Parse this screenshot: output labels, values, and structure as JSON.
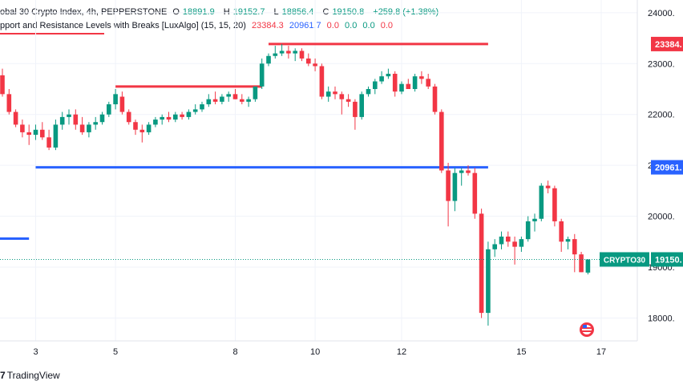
{
  "header": {
    "symbol_line": "obal 30 Crypto Index, 4h, PEPPERSTONE",
    "open_label": "O",
    "open": "18891.9",
    "high_label": "H",
    "high": "19152.7",
    "low_label": "L",
    "low": "18856.4",
    "close_label": "C",
    "close": "19150.8",
    "change": "+259.8 (+1.38%)",
    "indicator": "pport and Resistance Levels with Breaks [LuxAlgo] (15, 15, 20)",
    "ind_v1": "23384.3",
    "ind_v2": "20961.7",
    "ind_v3": "0.0",
    "ind_v4": "0.0",
    "ind_v5": "0.0",
    "ind_v6": "0.0"
  },
  "footer": {
    "logo_mark": "7",
    "brand": "TradingView"
  },
  "colors": {
    "up": "#089981",
    "down": "#f23645",
    "resistance": "#f23645",
    "support": "#2962ff",
    "axis_text": "#131722"
  },
  "chart_data": {
    "type": "candlestick",
    "title": "",
    "y_ticks": [
      "24000.",
      "23000.",
      "22000.",
      "21000.",
      "20000.",
      "19000.",
      "18000."
    ],
    "y_tick_values": [
      24000,
      23000,
      22000,
      21000,
      20000,
      19000,
      18000
    ],
    "x_tick_labels": [
      "3",
      "5",
      "8",
      "10",
      "12",
      "15",
      "17"
    ],
    "price_badges": [
      {
        "label": "23384.",
        "value": 23384.3,
        "color": "#f23645"
      },
      {
        "label": "20961.",
        "value": 20961.7,
        "color": "#2962ff"
      },
      {
        "label": "19150.",
        "value": 19150.8,
        "color": "#089981",
        "tag": "CRYPTO30"
      }
    ],
    "levels": [
      {
        "kind": "resistance",
        "value": 22550,
        "from": 17,
        "to": 39
      },
      {
        "kind": "resistance",
        "value": 23384.3,
        "from": 40,
        "to": 73
      },
      {
        "kind": "support",
        "value": 20961.7,
        "from": 5,
        "to": 73
      },
      {
        "kind": "support",
        "value": 19560,
        "from": -1,
        "to": 4
      }
    ],
    "candles": [
      [
        22770,
        22900,
        22350,
        22400
      ],
      [
        22400,
        22500,
        22000,
        22050
      ],
      [
        22050,
        22100,
        21750,
        21800
      ],
      [
        21800,
        21900,
        21550,
        21650
      ],
      [
        21650,
        21800,
        21400,
        21600
      ],
      [
        21600,
        21800,
        21500,
        21700
      ],
      [
        21700,
        21850,
        21500,
        21550
      ],
      [
        21550,
        21700,
        21300,
        21350
      ],
      [
        21350,
        21900,
        21300,
        21800
      ],
      [
        21800,
        22050,
        21700,
        21950
      ],
      [
        21950,
        22100,
        21800,
        22000
      ],
      [
        22000,
        22100,
        21700,
        21800
      ],
      [
        21800,
        21950,
        21600,
        21650
      ],
      [
        21650,
        21850,
        21550,
        21800
      ],
      [
        21800,
        21950,
        21700,
        21850
      ],
      [
        21850,
        22050,
        21800,
        22000
      ],
      [
        22000,
        22250,
        21950,
        22200
      ],
      [
        22200,
        22500,
        22100,
        22400
      ],
      [
        22350,
        22450,
        22000,
        22050
      ],
      [
        22050,
        22100,
        21800,
        21850
      ],
      [
        21850,
        21900,
        21600,
        21700
      ],
      [
        21700,
        21800,
        21450,
        21650
      ],
      [
        21650,
        21850,
        21600,
        21800
      ],
      [
        21800,
        21950,
        21750,
        21900
      ],
      [
        21900,
        22000,
        21800,
        21950
      ],
      [
        21950,
        22050,
        21850,
        21900
      ],
      [
        21900,
        22050,
        21850,
        22000
      ],
      [
        22000,
        22050,
        21900,
        21950
      ],
      [
        21950,
        22100,
        21900,
        22050
      ],
      [
        22050,
        22200,
        22000,
        22100
      ],
      [
        22100,
        22250,
        22050,
        22200
      ],
      [
        22200,
        22400,
        22150,
        22300
      ],
      [
        22300,
        22450,
        22200,
        22250
      ],
      [
        22250,
        22400,
        22200,
        22350
      ],
      [
        22350,
        22450,
        22250,
        22400
      ],
      [
        22400,
        22500,
        22300,
        22300
      ],
      [
        22300,
        22400,
        22200,
        22250
      ],
      [
        22250,
        22350,
        22150,
        22300
      ],
      [
        22300,
        22500,
        22250,
        22550
      ],
      [
        22550,
        23100,
        22500,
        23000
      ],
      [
        23000,
        23200,
        22950,
        23150
      ],
      [
        23150,
        23350,
        23100,
        23200
      ],
      [
        23200,
        23384,
        23150,
        23250
      ],
      [
        23250,
        23350,
        23100,
        23200
      ],
      [
        23200,
        23300,
        23050,
        23250
      ],
      [
        23250,
        23300,
        23050,
        23100
      ],
      [
        23100,
        23200,
        22950,
        23000
      ],
      [
        23000,
        23100,
        22850,
        22950
      ],
      [
        22950,
        23000,
        22300,
        22350
      ],
      [
        22350,
        22550,
        22250,
        22450
      ],
      [
        22450,
        22550,
        22300,
        22400
      ],
      [
        22400,
        22450,
        22000,
        22300
      ],
      [
        22300,
        22400,
        22150,
        22250
      ],
      [
        22250,
        22300,
        21700,
        21950
      ],
      [
        21950,
        22450,
        21900,
        22400
      ],
      [
        22400,
        22550,
        22350,
        22500
      ],
      [
        22500,
        22700,
        22400,
        22650
      ],
      [
        22650,
        22850,
        22600,
        22750
      ],
      [
        22750,
        22900,
        22700,
        22800
      ],
      [
        22800,
        22850,
        22350,
        22450
      ],
      [
        22450,
        22650,
        22400,
        22600
      ],
      [
        22600,
        22700,
        22500,
        22500
      ],
      [
        22500,
        22800,
        22450,
        22750
      ],
      [
        22750,
        22850,
        22600,
        22700
      ],
      [
        22700,
        22800,
        22500,
        22550
      ],
      [
        22550,
        22600,
        22000,
        22050
      ],
      [
        22050,
        22100,
        20850,
        20900
      ],
      [
        20900,
        21050,
        19800,
        20300
      ],
      [
        20300,
        20950,
        20100,
        20850
      ],
      [
        20850,
        20950,
        20600,
        20900
      ],
      [
        20900,
        21000,
        20800,
        20850
      ],
      [
        20850,
        20950,
        19950,
        20050
      ],
      [
        20050,
        20150,
        18000,
        18100
      ],
      [
        18100,
        19500,
        17850,
        19350
      ],
      [
        19350,
        19550,
        19200,
        19450
      ],
      [
        19450,
        19700,
        19350,
        19600
      ],
      [
        19600,
        19700,
        19400,
        19500
      ],
      [
        19500,
        19600,
        19050,
        19400
      ],
      [
        19400,
        19600,
        19300,
        19550
      ],
      [
        19550,
        20000,
        19500,
        19900
      ],
      [
        19900,
        20050,
        19700,
        19950
      ],
      [
        19950,
        20650,
        19900,
        20600
      ],
      [
        20600,
        20700,
        20450,
        20550
      ],
      [
        20550,
        20600,
        19800,
        19900
      ],
      [
        19900,
        19950,
        19300,
        19500
      ],
      [
        19500,
        19600,
        19350,
        19550
      ],
      [
        19550,
        19650,
        18900,
        19250
      ],
      [
        19250,
        19300,
        18900,
        18900
      ],
      [
        18891.9,
        19152.7,
        18856.4,
        19150.8
      ]
    ],
    "plot_x0": 0,
    "plot_x1": 725,
    "ylim": [
      17550,
      24250
    ]
  }
}
